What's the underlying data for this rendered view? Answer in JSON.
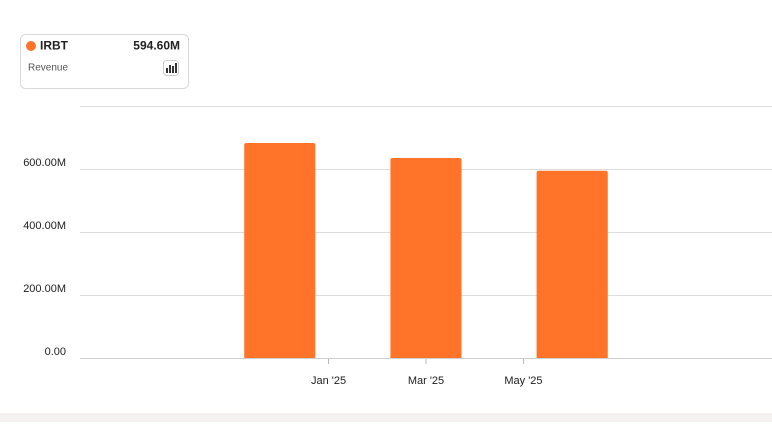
{
  "chart_data": {
    "type": "bar",
    "ylabel": "Revenue",
    "x": [
      0,
      3,
      6
    ],
    "xlim": [
      -4.1,
      10.1
    ],
    "xticks": [
      {
        "value": 1,
        "label": "Jan '25"
      },
      {
        "value": 3,
        "label": "Mar '25"
      },
      {
        "value": 5,
        "label": "May '25"
      }
    ],
    "series": [
      {
        "name": "IRBT",
        "color": "#ff7429",
        "values": [
          682.5,
          635,
          594.6
        ],
        "value_labels": [
          null,
          null,
          "594.60M"
        ]
      }
    ],
    "ylim": [
      0,
      800
    ],
    "yticks": [
      {
        "value": 0,
        "label": "0.00"
      },
      {
        "value": 200,
        "label": "200.00M"
      },
      {
        "value": 400,
        "label": "400.00M"
      },
      {
        "value": 600,
        "label": "600.00M"
      }
    ],
    "grid": true
  }
}
